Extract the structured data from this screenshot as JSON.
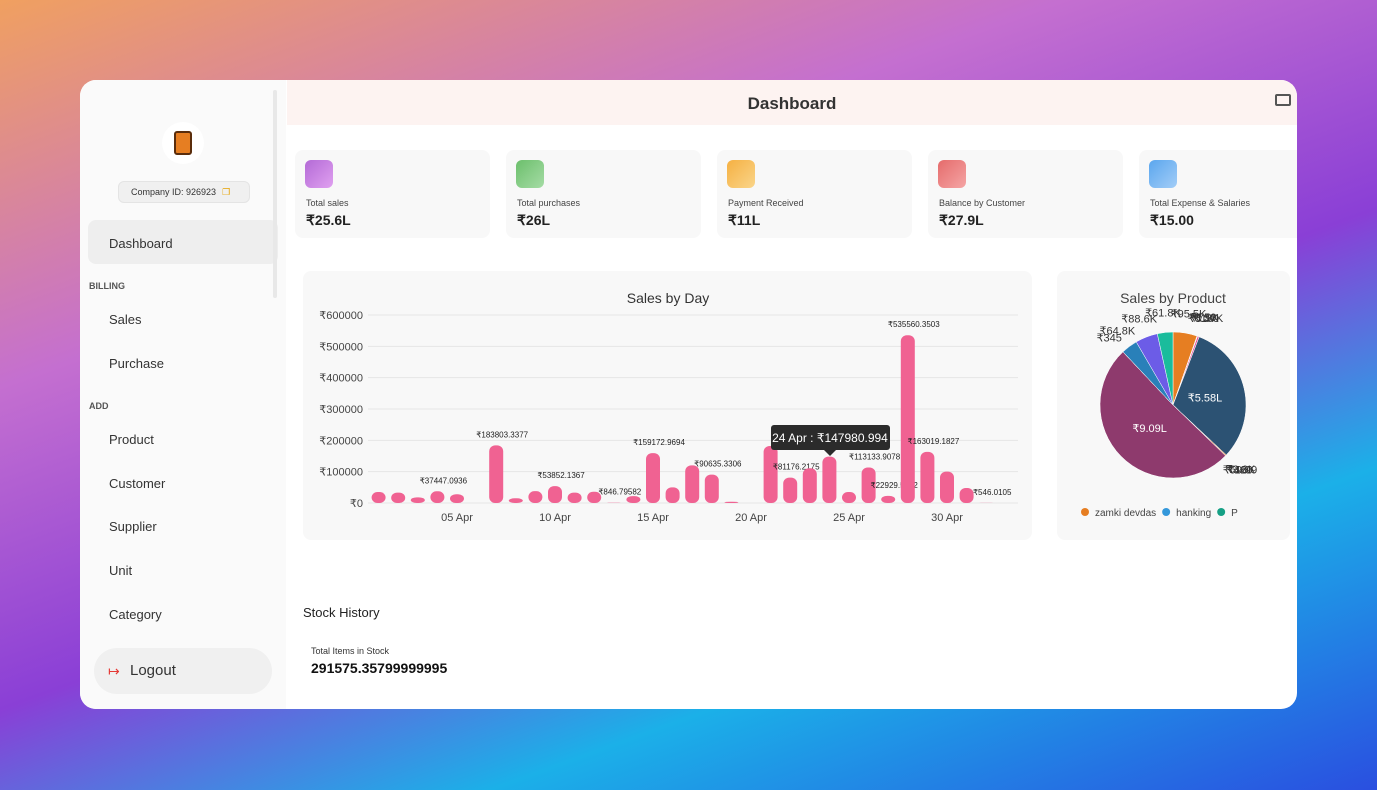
{
  "sidebar": {
    "company_id": "Company ID: 926923",
    "items": [
      {
        "label": "Dashboard"
      },
      {
        "section": "BILLING"
      },
      {
        "label": "Sales"
      },
      {
        "label": "Purchase"
      },
      {
        "section": "ADD"
      },
      {
        "label": "Product"
      },
      {
        "label": "Customer"
      },
      {
        "label": "Supplier"
      },
      {
        "label": "Unit"
      },
      {
        "label": "Category"
      }
    ],
    "logout": "Logout"
  },
  "header": {
    "title": "Dashboard"
  },
  "stats": [
    {
      "label": "Total sales",
      "value": "₹25.6L"
    },
    {
      "label": "Total purchases",
      "value": "₹26L"
    },
    {
      "label": "Payment Received",
      "value": "₹11L"
    },
    {
      "label": "Balance by Customer",
      "value": "₹27.9L"
    },
    {
      "label": "Total Expense & Salaries",
      "value": "₹15.00"
    }
  ],
  "chart_data": [
    {
      "type": "bar",
      "title": "Sales by Day",
      "color": "#f06292",
      "categories": [
        null,
        null,
        null,
        null,
        "05 Apr",
        null,
        null,
        null,
        null,
        "10 Apr",
        null,
        null,
        null,
        null,
        "15 Apr",
        null,
        null,
        null,
        null,
        "20 Apr",
        null,
        null,
        null,
        null,
        "25 Apr",
        null,
        null,
        null,
        null,
        "30 Apr",
        null,
        null
      ],
      "values": [
        35000,
        33000,
        18000,
        37447.0936,
        28000,
        null,
        183803.3377,
        15000,
        38000,
        53852.1367,
        33000,
        36000,
        846.79582,
        22000,
        159172.9694,
        50000,
        120000,
        90635.3306,
        4000,
        null,
        181780,
        81176.2175,
        111000,
        147980.994,
        35000,
        113133.9078,
        22929.5212,
        535560.3503,
        163019.1827,
        100000,
        48000,
        546.0105
      ],
      "value_labels": [
        null,
        null,
        null,
        "₹37447.0936",
        null,
        null,
        "₹183803.3377",
        null,
        null,
        "₹53852.1367",
        null,
        null,
        "₹846.79582",
        null,
        "₹159172.9694",
        null,
        null,
        "₹90635.3306",
        null,
        null,
        null,
        "₹81176.2175",
        null,
        null,
        null,
        "₹113133.9078",
        "₹22929.5212",
        "₹535560.3503",
        "₹163019.1827",
        null,
        null,
        "₹546.0105"
      ],
      "tooltip": "24 Apr : ₹147980.994",
      "ylim": [
        0,
        600000
      ],
      "yticks": [
        {
          "value": 0,
          "label": "₹0"
        },
        {
          "value": 100000,
          "label": "₹100000"
        },
        {
          "value": 200000,
          "label": "₹200000"
        },
        {
          "value": 300000,
          "label": "₹300000"
        },
        {
          "value": 400000,
          "label": "₹400000"
        },
        {
          "value": 500000,
          "label": "₹500000"
        },
        {
          "value": 600000,
          "label": "₹600000"
        }
      ],
      "grid": true
    },
    {
      "type": "pie",
      "title": "Sales by Product",
      "categories": [
        "zamki devdas",
        "hanking",
        "P",
        null,
        null,
        null,
        null,
        null,
        null,
        null,
        null,
        null,
        null,
        null,
        null
      ],
      "values": [
        95500,
        750,
        1900,
        6370,
        180,
        558000,
        3600,
        59.99,
        160,
        420,
        909000,
        345,
        64800,
        88600,
        61800
      ],
      "value_labels": [
        "₹95.5K",
        "₹750",
        "₹1.9K",
        "₹6.37K",
        "₹180",
        "₹5.58L",
        "₹3.6K",
        "₹59.99",
        "₹160",
        "₹420",
        "₹9.09L",
        "₹345",
        "₹64.8K",
        "₹88.6K",
        "₹61.8K"
      ],
      "colors": [
        "#e67e22",
        "#3498db",
        "#16a085",
        "#e84393",
        "#f1c40f",
        "#2c5273",
        "#d35400",
        "#8e44ad",
        "#27ae60",
        "#c0392b",
        "#8e3a6d",
        "#f39c12",
        "#2980b9",
        "#6c5ce7",
        "#1abc9c"
      ]
    }
  ],
  "stock": {
    "title": "Stock History",
    "label": "Total Items in Stock",
    "value": "291575.35799999995"
  }
}
